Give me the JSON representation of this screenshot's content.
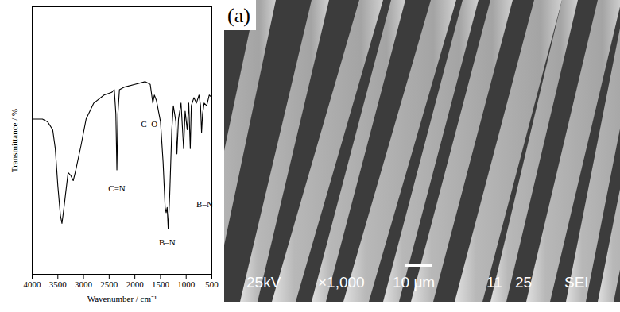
{
  "chart_data": {
    "type": "line",
    "xlabel": "Wavenumber / cm⁻¹",
    "ylabel": "Transmittance / %",
    "color": "#000000",
    "x": [
      4000,
      3800,
      3700,
      3600,
      3550,
      3500,
      3450,
      3420,
      3380,
      3350,
      3300,
      3250,
      3200,
      3150,
      3050,
      2950,
      2800,
      2600,
      2450,
      2400,
      2370,
      2350,
      2330,
      2300,
      2200,
      2000,
      1800,
      1700,
      1650,
      1620,
      1580,
      1500,
      1450,
      1410,
      1390,
      1370,
      1350,
      1320,
      1280,
      1250,
      1200,
      1180,
      1150,
      1100,
      1050,
      1020,
      980,
      950,
      920,
      900,
      850,
      800,
      750,
      720,
      700,
      680,
      650,
      600,
      550,
      500
    ],
    "values": [
      58,
      58,
      57,
      54,
      47,
      33,
      22,
      19,
      25,
      30,
      38,
      37,
      35,
      39,
      48,
      58,
      64,
      67,
      68,
      69,
      60,
      39,
      60,
      69,
      70,
      71,
      72,
      71,
      64,
      67,
      65,
      57,
      42,
      25,
      23,
      25,
      17,
      30,
      54,
      63,
      57,
      45,
      58,
      64,
      47,
      61,
      54,
      64,
      47,
      63,
      66,
      64,
      67,
      63,
      53,
      60,
      64,
      63,
      67,
      66
    ],
    "xlim": [
      4000,
      500
    ],
    "xticks": [
      4000,
      3500,
      3000,
      2500,
      2000,
      1500,
      1000,
      500
    ],
    "ylim": [
      0,
      100
    ],
    "yticks": [],
    "tick_labels": "x",
    "annotations": [
      {
        "text": "C=N",
        "x": 2350,
        "y": 32
      },
      {
        "text": "C–O",
        "x": 1720,
        "y": 56
      },
      {
        "text": "B–N",
        "x": 1370,
        "y": 12
      },
      {
        "text": "B–N",
        "x": 640,
        "y": 26
      }
    ]
  },
  "image": {
    "panel_label": "(a)",
    "info_bar": [
      "25kV",
      "×1,000",
      "10 μm",
      "11",
      "25",
      "SEI"
    ]
  }
}
